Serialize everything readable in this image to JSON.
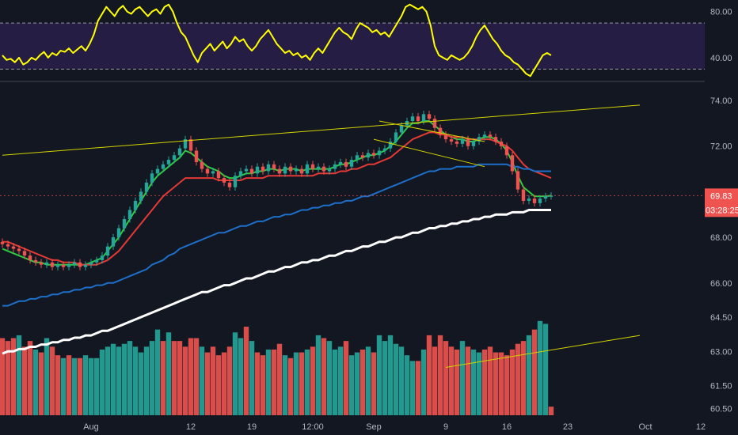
{
  "chart_data": [
    {
      "type": "line",
      "indicator": "rsi",
      "y_ticks": [
        "80.00",
        "40.00"
      ],
      "ylim": [
        20,
        90
      ],
      "overbought": 70,
      "oversold": 30,
      "line_color": "#ffff00",
      "band_color": "#2a1f4a",
      "values": [
        42,
        38,
        39,
        36,
        40,
        34,
        36,
        40,
        38,
        42,
        45,
        40,
        44,
        42,
        46,
        45,
        48,
        44,
        47,
        50,
        46,
        52,
        60,
        72,
        78,
        84,
        80,
        76,
        82,
        85,
        80,
        78,
        82,
        84,
        80,
        76,
        80,
        82,
        78,
        84,
        86,
        80,
        70,
        62,
        58,
        50,
        42,
        36,
        44,
        48,
        52,
        46,
        50,
        54,
        48,
        52,
        58,
        54,
        56,
        50,
        46,
        50,
        56,
        60,
        64,
        58,
        52,
        48,
        44,
        46,
        42,
        44,
        40,
        42,
        38,
        44,
        48,
        44,
        50,
        56,
        62,
        66,
        62,
        60,
        56,
        64,
        70,
        68,
        66,
        62,
        64,
        60,
        62,
        58,
        64,
        70,
        76,
        84,
        86,
        84,
        82,
        84,
        80,
        68,
        50,
        42,
        40,
        38,
        42,
        40,
        38,
        40,
        44,
        50,
        58,
        64,
        68,
        62,
        56,
        52,
        46,
        42,
        40,
        36,
        34,
        30,
        26,
        24,
        30,
        36,
        42,
        44,
        42
      ],
      "x_tick_labels": [
        "Aug",
        "12",
        "19",
        "12:00",
        "Sep",
        "9",
        "16",
        "23",
        "Oct",
        "12"
      ]
    },
    {
      "type": "candlestick",
      "y_ticks": [
        "74.00",
        "72.00",
        "68.00",
        "66.00",
        "64.50",
        "63.00",
        "61.50",
        "60.50"
      ],
      "ylim": [
        60.2,
        74.8
      ],
      "last_price": "69.83",
      "last_price_color": "#ef5350",
      "countdown": "03:28:25",
      "up_color": "#26a69a",
      "down_color": "#ef5350",
      "closes": [
        67.7,
        67.6,
        67.5,
        67.4,
        67.2,
        67.0,
        66.9,
        66.8,
        66.9,
        66.7,
        66.8,
        66.7,
        66.8,
        66.9,
        66.7,
        66.8,
        66.9,
        67.0,
        67.2,
        67.6,
        68.0,
        68.4,
        68.8,
        69.2,
        69.6,
        70.0,
        70.4,
        70.8,
        71.0,
        71.2,
        71.4,
        71.6,
        71.9,
        72.3,
        71.8,
        71.3,
        71.0,
        70.8,
        70.9,
        70.6,
        70.4,
        70.2,
        70.7,
        70.9,
        71.0,
        70.8,
        71.1,
        70.9,
        71.2,
        71.0,
        70.8,
        71.1,
        70.9,
        71.0,
        70.8,
        71.2,
        71.0,
        71.1,
        70.9,
        71.0,
        71.2,
        71.3,
        71.1,
        71.4,
        71.6,
        71.5,
        71.7,
        71.6,
        71.8,
        71.9,
        72.2,
        72.6,
        72.9,
        73.1,
        73.3,
        73.1,
        73.4,
        73.2,
        72.8,
        72.5,
        72.3,
        72.2,
        72.1,
        72.3,
        72.0,
        72.2,
        72.4,
        72.5,
        72.4,
        72.2,
        72.0,
        71.6,
        70.9,
        70.1,
        69.6,
        69.7,
        69.5,
        69.7,
        69.8,
        69.83
      ],
      "series": [
        {
          "name": "",
          "color": "#2ecc40",
          "values": [
            67.5,
            67.4,
            67.3,
            67.2,
            67.1,
            67.0,
            66.9,
            66.9,
            66.8,
            66.8,
            66.8,
            66.8,
            66.8,
            66.8,
            66.8,
            66.8,
            66.9,
            67.0,
            67.1,
            67.4,
            67.7,
            68.0,
            68.4,
            68.8,
            69.2,
            69.6,
            70.0,
            70.4,
            70.7,
            70.9,
            71.1,
            71.3,
            71.5,
            71.8,
            71.7,
            71.5,
            71.3,
            71.1,
            71.0,
            70.9,
            70.7,
            70.6,
            70.6,
            70.7,
            70.8,
            70.8,
            70.9,
            70.9,
            71.0,
            71.0,
            70.9,
            71.0,
            71.0,
            71.0,
            70.9,
            71.0,
            71.0,
            71.0,
            71.0,
            71.0,
            71.1,
            71.2,
            71.2,
            71.3,
            71.4,
            71.5,
            71.6,
            71.6,
            71.7,
            71.8,
            72.0,
            72.2,
            72.5,
            72.8,
            73.0,
            73.0,
            73.1,
            73.1,
            72.9,
            72.7,
            72.5,
            72.4,
            72.3,
            72.3,
            72.2,
            72.2,
            72.3,
            72.4,
            72.4,
            72.3,
            72.1,
            71.8,
            71.3,
            70.7,
            70.2,
            70.0,
            69.8,
            69.8,
            69.8,
            69.83
          ]
        },
        {
          "name": "",
          "color": "#e53935",
          "values": [
            67.8,
            67.8,
            67.7,
            67.6,
            67.5,
            67.4,
            67.3,
            67.2,
            67.1,
            67.0,
            67.0,
            66.9,
            66.9,
            66.9,
            66.8,
            66.8,
            66.8,
            66.8,
            66.9,
            67.0,
            67.2,
            67.4,
            67.7,
            68.0,
            68.3,
            68.6,
            68.9,
            69.2,
            69.5,
            69.8,
            70.0,
            70.2,
            70.4,
            70.6,
            70.6,
            70.6,
            70.6,
            70.6,
            70.6,
            70.5,
            70.5,
            70.5,
            70.5,
            70.5,
            70.6,
            70.6,
            70.6,
            70.6,
            70.7,
            70.7,
            70.7,
            70.7,
            70.7,
            70.7,
            70.7,
            70.7,
            70.7,
            70.8,
            70.8,
            70.8,
            70.8,
            70.9,
            70.9,
            71.0,
            71.0,
            71.1,
            71.2,
            71.2,
            71.3,
            71.4,
            71.5,
            71.7,
            71.9,
            72.1,
            72.3,
            72.4,
            72.5,
            72.6,
            72.6,
            72.5,
            72.5,
            72.4,
            72.4,
            72.4,
            72.3,
            72.3,
            72.3,
            72.3,
            72.3,
            72.2,
            72.1,
            72.0,
            71.8,
            71.5,
            71.2,
            71.0,
            70.9,
            70.8,
            70.7,
            70.6
          ]
        },
        {
          "name": "",
          "color": "#1e6fc9",
          "values": [
            65.0,
            65.0,
            65.1,
            65.2,
            65.2,
            65.3,
            65.3,
            65.4,
            65.4,
            65.5,
            65.5,
            65.6,
            65.6,
            65.7,
            65.7,
            65.8,
            65.8,
            65.9,
            65.9,
            66.0,
            66.0,
            66.1,
            66.2,
            66.3,
            66.4,
            66.5,
            66.6,
            66.8,
            66.9,
            67.0,
            67.2,
            67.3,
            67.5,
            67.6,
            67.7,
            67.8,
            67.9,
            68.0,
            68.1,
            68.2,
            68.2,
            68.3,
            68.4,
            68.5,
            68.5,
            68.6,
            68.7,
            68.7,
            68.8,
            68.9,
            68.9,
            69.0,
            69.0,
            69.1,
            69.2,
            69.2,
            69.3,
            69.3,
            69.4,
            69.4,
            69.5,
            69.5,
            69.6,
            69.6,
            69.7,
            69.8,
            69.8,
            69.9,
            70.0,
            70.1,
            70.2,
            70.3,
            70.4,
            70.5,
            70.6,
            70.7,
            70.8,
            70.9,
            70.9,
            71.0,
            71.0,
            71.0,
            71.1,
            71.1,
            71.1,
            71.1,
            71.2,
            71.2,
            71.2,
            71.2,
            71.2,
            71.2,
            71.1,
            71.1,
            71.0,
            71.0,
            70.9,
            70.9,
            70.9,
            70.9
          ]
        },
        {
          "name": "",
          "color": "#ffffff",
          "values": [
            62.9,
            63.0,
            63.0,
            63.1,
            63.1,
            63.2,
            63.2,
            63.3,
            63.3,
            63.4,
            63.4,
            63.5,
            63.5,
            63.6,
            63.6,
            63.7,
            63.7,
            63.8,
            63.9,
            63.9,
            64.0,
            64.1,
            64.2,
            64.3,
            64.4,
            64.5,
            64.6,
            64.7,
            64.8,
            64.9,
            65.0,
            65.1,
            65.2,
            65.3,
            65.4,
            65.5,
            65.6,
            65.6,
            65.7,
            65.8,
            65.9,
            65.9,
            66.0,
            66.1,
            66.2,
            66.2,
            66.3,
            66.4,
            66.5,
            66.5,
            66.6,
            66.7,
            66.7,
            66.8,
            66.9,
            66.9,
            67.0,
            67.0,
            67.1,
            67.2,
            67.2,
            67.3,
            67.4,
            67.4,
            67.5,
            67.6,
            67.6,
            67.7,
            67.8,
            67.8,
            67.9,
            68.0,
            68.0,
            68.1,
            68.2,
            68.2,
            68.3,
            68.4,
            68.4,
            68.5,
            68.5,
            68.6,
            68.6,
            68.7,
            68.7,
            68.8,
            68.8,
            68.9,
            68.9,
            69.0,
            69.0,
            69.0,
            69.1,
            69.1,
            69.1,
            69.2,
            69.2,
            69.2,
            69.2,
            69.2
          ]
        }
      ],
      "volume": {
        "ylim": [
          60.2,
          63.8
        ],
        "values": [
          62.9,
          62.8,
          62.9,
          63.0,
          62.6,
          62.8,
          62.5,
          62.4,
          62.9,
          62.6,
          62.3,
          62.2,
          62.3,
          62.2,
          62.2,
          62.3,
          62.2,
          62.2,
          62.5,
          62.6,
          62.7,
          62.6,
          62.7,
          62.8,
          62.6,
          62.4,
          62.6,
          62.8,
          63.2,
          62.8,
          63.1,
          62.8,
          62.8,
          62.6,
          62.9,
          62.9,
          62.6,
          62.4,
          62.6,
          62.3,
          62.4,
          62.6,
          63.1,
          62.9,
          63.3,
          62.8,
          62.4,
          62.3,
          62.5,
          62.5,
          62.7,
          62.3,
          62.2,
          62.4,
          62.4,
          62.5,
          62.6,
          63.0,
          62.9,
          62.8,
          62.5,
          62.6,
          62.8,
          62.3,
          62.4,
          62.5,
          62.6,
          62.4,
          63.0,
          62.8,
          63.0,
          62.7,
          62.6,
          62.3,
          62.1,
          62.1,
          62.5,
          63.0,
          62.6,
          63.0,
          62.8,
          62.6,
          62.5,
          62.8,
          62.6,
          62.5,
          62.4,
          62.5,
          62.6,
          62.4,
          62.4,
          62.3,
          62.5,
          62.7,
          62.8,
          63.0,
          63.2,
          63.5,
          63.4,
          60.5
        ],
        "colors": [
          "d",
          "d",
          "d",
          "u",
          "d",
          "d",
          "u",
          "d",
          "u",
          "d",
          "d",
          "u",
          "d",
          "u",
          "d",
          "u",
          "u",
          "u",
          "u",
          "u",
          "u",
          "u",
          "u",
          "u",
          "u",
          "u",
          "u",
          "u",
          "u",
          "d",
          "u",
          "d",
          "d",
          "d",
          "d",
          "d",
          "u",
          "d",
          "d",
          "d",
          "d",
          "d",
          "u",
          "u",
          "d",
          "u",
          "d",
          "d",
          "u",
          "d",
          "d",
          "u",
          "d",
          "u",
          "d",
          "u",
          "d",
          "u",
          "d",
          "u",
          "u",
          "u",
          "d",
          "u",
          "u",
          "d",
          "u",
          "d",
          "u",
          "u",
          "u",
          "u",
          "u",
          "u",
          "u",
          "d",
          "u",
          "d",
          "d",
          "d",
          "d",
          "d",
          "d",
          "u",
          "d",
          "u",
          "u",
          "d",
          "d",
          "d",
          "d",
          "d",
          "d",
          "d",
          "d",
          "u",
          "d",
          "u",
          "u",
          "d"
        ]
      },
      "trendlines": [
        {
          "color": "#d4d400",
          "points": [
            [
              0,
              71.6
            ],
            [
              115,
              73.8
            ]
          ]
        },
        {
          "color": "#d4d400",
          "points": [
            [
              68,
              73.1
            ],
            [
              87,
              72.2
            ]
          ]
        },
        {
          "color": "#d4d400",
          "points": [
            [
              67,
              72.3
            ],
            [
              87,
              71.1
            ]
          ]
        },
        {
          "color": "#d4d400",
          "points": [
            [
              80,
              62.3
            ],
            [
              115,
              63.7
            ]
          ]
        }
      ],
      "x_tick_labels": [
        "Aug",
        "12",
        "19",
        "12:00",
        "Sep",
        "9",
        "16",
        "23",
        "Oct",
        "12"
      ]
    }
  ]
}
